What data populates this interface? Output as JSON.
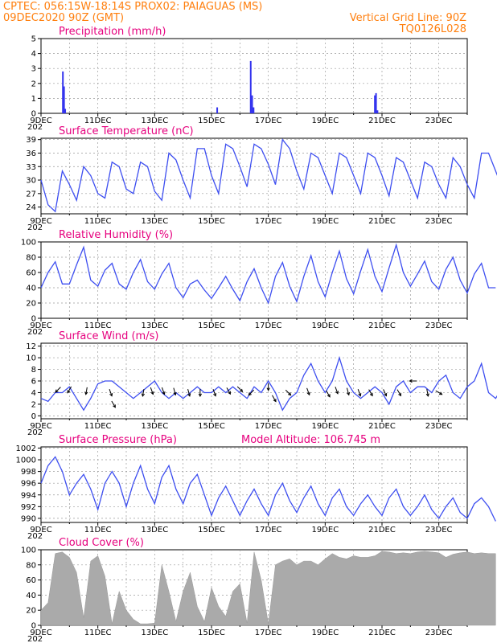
{
  "header": {
    "line1_left": "CPTEC:   056:15W-18:14S   PROX02: PAIAGUAS (MS)",
    "line2_left": "09DEC2020 90Z (GMT)",
    "line2_right": "Vertical Grid Line: 90Z",
    "line3_right": "TQ0126L028"
  },
  "x_axis": {
    "labels": [
      "9DEC",
      "11DEC",
      "13DEC",
      "15DEC",
      "17DEC",
      "19DEC",
      "21DEC",
      "23DEC"
    ],
    "cut_label": "202"
  },
  "colors": {
    "line": "#3d4ef0",
    "bar": "#3333ee",
    "cloud": "#aaaaaa",
    "header": "#ff7f0e",
    "title": "#e6007e",
    "grid": "#9a9a9a"
  },
  "chart_data": [
    {
      "type": "bar",
      "title": "Precipitation (mm/h)",
      "ylim": [
        0,
        5
      ],
      "yticks": [
        "0",
        "1",
        "2",
        "3",
        "4",
        "5"
      ],
      "x_unit": "days since 09DEC 00Z",
      "points": [
        {
          "x": 0.77,
          "y": 2.8
        },
        {
          "x": 0.81,
          "y": 1.8
        },
        {
          "x": 0.85,
          "y": 0.3
        },
        {
          "x": 6.2,
          "y": 0.4
        },
        {
          "x": 7.38,
          "y": 3.5
        },
        {
          "x": 7.43,
          "y": 1.2
        },
        {
          "x": 7.48,
          "y": 0.4
        },
        {
          "x": 11.75,
          "y": 1.2
        },
        {
          "x": 11.79,
          "y": 1.35
        },
        {
          "x": 11.84,
          "y": 0.2
        }
      ]
    },
    {
      "type": "line",
      "title": "Surface Temperature (nC)",
      "ylim": [
        22.5,
        39.3
      ],
      "yticks": [
        "24",
        "27",
        "30",
        "33",
        "36",
        "39"
      ],
      "x_unit": "days since 09DEC 00Z",
      "values_per_day": 4,
      "values": [
        30,
        24.5,
        23,
        32,
        29,
        25.5,
        33,
        31,
        27,
        26,
        34,
        33,
        28,
        27,
        34,
        33,
        27.5,
        25.5,
        36,
        34.5,
        30,
        26,
        37,
        37,
        31,
        27,
        38,
        37,
        33,
        28.5,
        38,
        37,
        33.5,
        29,
        39,
        37,
        32,
        28,
        36,
        35,
        31,
        27,
        36,
        35,
        31,
        27,
        36,
        35,
        31,
        26.5,
        35,
        34,
        30,
        26,
        34,
        33,
        29,
        26,
        35,
        33,
        29,
        26,
        36,
        36,
        32,
        28
      ]
    },
    {
      "type": "line",
      "title": "Relative Humidity (%)",
      "ylim": [
        0,
        100
      ],
      "yticks": [
        "0",
        "20",
        "40",
        "60",
        "80",
        "100"
      ],
      "x_unit": "days since 09DEC 00Z",
      "values_per_day": 4,
      "values": [
        40,
        60,
        74,
        45,
        45,
        70,
        93,
        50,
        42,
        63,
        72,
        45,
        38,
        60,
        77,
        48,
        38,
        58,
        72,
        40,
        27,
        45,
        50,
        37,
        26,
        40,
        55,
        38,
        23,
        48,
        65,
        40,
        20,
        55,
        73,
        42,
        22,
        55,
        82,
        48,
        28,
        60,
        88,
        52,
        32,
        62,
        90,
        55,
        35,
        66,
        96,
        60,
        42,
        58,
        75,
        48,
        38,
        64,
        80,
        50,
        33,
        58,
        72,
        40,
        40
      ]
    },
    {
      "type": "line",
      "title": "Surface Wind (m/s)",
      "ylim": [
        -0.5,
        12.5
      ],
      "yticks": [
        "0",
        "2",
        "4",
        "6",
        "8",
        "10",
        "12"
      ],
      "x_unit": "days since 09DEC 00Z",
      "values_per_day": 4,
      "values": [
        3,
        2.5,
        4,
        4,
        5,
        3,
        1,
        3,
        5.5,
        6,
        6,
        5,
        4,
        3,
        4,
        5,
        6,
        4,
        3,
        4,
        3,
        4,
        5,
        4,
        4,
        5,
        4,
        5,
        4,
        3,
        5,
        4,
        6,
        4,
        1,
        3,
        4,
        7,
        9,
        6,
        4,
        6,
        10,
        6,
        4,
        3,
        4,
        5,
        4,
        2,
        5,
        6,
        4,
        5,
        5,
        4,
        6,
        7,
        4,
        3,
        5,
        6,
        9,
        4,
        3,
        5,
        6,
        4
      ],
      "arrows": [
        {
          "x": 0.6,
          "y": 4.5,
          "dir": 315
        },
        {
          "x": 1.0,
          "y": 4.5,
          "dir": 330
        },
        {
          "x": 1.6,
          "y": 4.3,
          "dir": 350
        },
        {
          "x": 2.45,
          "y": 4.0,
          "dir": 20
        },
        {
          "x": 2.55,
          "y": 2.0,
          "dir": 30
        },
        {
          "x": 3.6,
          "y": 4.0,
          "dir": 350
        },
        {
          "x": 3.9,
          "y": 4.3,
          "dir": 20
        },
        {
          "x": 4.3,
          "y": 4.3,
          "dir": 20
        },
        {
          "x": 4.7,
          "y": 4.2,
          "dir": 15
        },
        {
          "x": 5.2,
          "y": 4.0,
          "dir": 15
        },
        {
          "x": 5.6,
          "y": 4.0,
          "dir": 0
        },
        {
          "x": 6.1,
          "y": 4.0,
          "dir": 20
        },
        {
          "x": 6.6,
          "y": 4.3,
          "dir": 30
        },
        {
          "x": 7.0,
          "y": 4.6,
          "dir": 45
        },
        {
          "x": 7.4,
          "y": 4.0,
          "dir": 315
        },
        {
          "x": 8.0,
          "y": 5.0,
          "dir": 0
        },
        {
          "x": 8.2,
          "y": 3.0,
          "dir": 30
        },
        {
          "x": 8.7,
          "y": 4.0,
          "dir": 45
        },
        {
          "x": 9.4,
          "y": 4.2,
          "dir": 20
        },
        {
          "x": 10.1,
          "y": 3.8,
          "dir": 30
        },
        {
          "x": 10.4,
          "y": 4.4,
          "dir": 20
        },
        {
          "x": 10.8,
          "y": 4.2,
          "dir": 15
        },
        {
          "x": 11.2,
          "y": 4.0,
          "dir": 20
        },
        {
          "x": 11.6,
          "y": 4.0,
          "dir": 30
        },
        {
          "x": 12.1,
          "y": 4.0,
          "dir": 25
        },
        {
          "x": 12.6,
          "y": 4.0,
          "dir": 30
        },
        {
          "x": 13.1,
          "y": 6.0,
          "dir": 270
        },
        {
          "x": 13.6,
          "y": 4.0,
          "dir": 10
        },
        {
          "x": 14.0,
          "y": 4.0,
          "dir": 60
        }
      ]
    },
    {
      "type": "line",
      "title": "Surface Pressure (hPa)",
      "annotation": "Model Altitude: 106.745  m",
      "ylim": [
        989.3,
        1002.2
      ],
      "yticks": [
        "990",
        "992",
        "994",
        "996",
        "998",
        "1000",
        "1002"
      ],
      "x_unit": "days since 09DEC 00Z",
      "values_per_day": 4,
      "values": [
        996,
        999,
        1000.5,
        998,
        994,
        996,
        997.5,
        995,
        991.5,
        996,
        998,
        996,
        992,
        996,
        999,
        995,
        992.5,
        997,
        999,
        995,
        992.5,
        996,
        997.5,
        994,
        990.5,
        993.5,
        995.5,
        993,
        990.5,
        993,
        995,
        992.5,
        990.5,
        994,
        996,
        993,
        991,
        993.5,
        995.5,
        992.5,
        990.5,
        993.5,
        995,
        992,
        990.5,
        992.5,
        994,
        992,
        990.5,
        993.5,
        995,
        992,
        990.5,
        992,
        994,
        991.5,
        990,
        992,
        993.5,
        991,
        990,
        992.5,
        993.5,
        992,
        989.5
      ]
    },
    {
      "type": "area",
      "title": "Cloud Cover (%)",
      "ylim": [
        0,
        100
      ],
      "yticks": [
        "0",
        "20",
        "40",
        "60",
        "80",
        "100"
      ],
      "x_unit": "days since 09DEC 00Z",
      "values_per_day": 4,
      "values": [
        20,
        30,
        95,
        97,
        90,
        70,
        10,
        85,
        92,
        65,
        2,
        45,
        20,
        8,
        2,
        2,
        3,
        80,
        45,
        5,
        45,
        70,
        25,
        5,
        50,
        25,
        12,
        45,
        55,
        3,
        97,
        60,
        2,
        80,
        85,
        88,
        80,
        85,
        85,
        80,
        88,
        95,
        90,
        88,
        92,
        90,
        90,
        92,
        98,
        97,
        95,
        96,
        95,
        97,
        98,
        97,
        96,
        90,
        94,
        96,
        97,
        95,
        96,
        95,
        95
      ]
    }
  ]
}
